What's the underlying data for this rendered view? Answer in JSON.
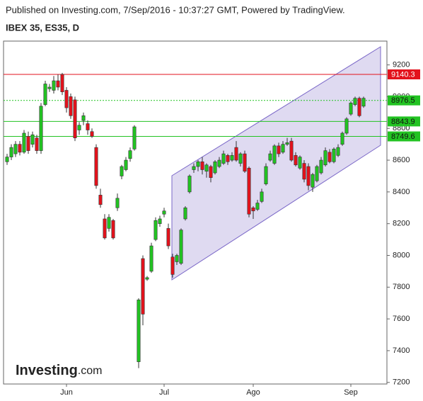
{
  "chart_data": {
    "type": "candlestick",
    "header": "Published on Investing.com, 7/Sep/2016 - 10:37:27 GMT, Powered by TradingView.",
    "title": "IBEX 35, ES35, D",
    "logo_main": "Investing",
    "logo_suffix": ".com",
    "up_color": "#22c322",
    "down_color": "#e3121c",
    "categories": [
      null,
      null,
      null,
      null,
      null,
      null,
      null,
      null,
      null,
      null,
      null,
      null,
      null,
      null,
      "Jun",
      null,
      null,
      null,
      null,
      null,
      null,
      null,
      null,
      null,
      null,
      null,
      null,
      null,
      null,
      null,
      null,
      null,
      null,
      null,
      null,
      null,
      null,
      "Jul",
      null,
      null,
      null,
      null,
      null,
      null,
      null,
      null,
      null,
      null,
      null,
      null,
      null,
      null,
      null,
      null,
      null,
      null,
      null,
      null,
      "Ago",
      null,
      null,
      null,
      null,
      null,
      null,
      null,
      null,
      null,
      null,
      null,
      null,
      null,
      null,
      null,
      null,
      null,
      null,
      null,
      null,
      null,
      null,
      "Sep",
      null,
      null,
      null
    ],
    "open": [
      8590,
      8620,
      8640,
      8700,
      8650,
      8750,
      8700,
      8740,
      8660,
      8950,
      9050,
      9040,
      9100,
      9140,
      9040,
      9000,
      8980,
      8790,
      8850,
      8830,
      8780,
      8680,
      8380,
      8230,
      8170,
      8220,
      8300,
      8500,
      8540,
      8610,
      8670,
      7330,
      7980,
      7850,
      7900,
      8100,
      8200,
      8260,
      8170,
      7990,
      7960,
      7950,
      8230,
      8400,
      8540,
      8560,
      8590,
      8530,
      8560,
      8520,
      8560,
      8580,
      8630,
      8600,
      8680,
      8580,
      8640,
      8550,
      8300,
      8290,
      8340,
      8450,
      8600,
      8580,
      8690,
      8650,
      8700,
      8720,
      8630,
      8550,
      8580,
      8560,
      8430,
      8470,
      8520,
      8570,
      8650,
      8590,
      8630,
      8700,
      8770,
      8890,
      8950,
      8990,
      8940
    ],
    "high": [
      8640,
      8700,
      8720,
      8720,
      8790,
      8780,
      8780,
      8760,
      8960,
      9100,
      9080,
      9130,
      9140,
      9150,
      9060,
      9020,
      9000,
      8840,
      8900,
      8850,
      8800,
      8700,
      8420,
      8260,
      8260,
      8230,
      8390,
      8570,
      8620,
      8680,
      8820,
      7730,
      8000,
      7870,
      8080,
      8240,
      8250,
      8300,
      8200,
      8010,
      8010,
      8170,
      8310,
      8510,
      8580,
      8600,
      8620,
      8580,
      8570,
      8600,
      8620,
      8660,
      8640,
      8650,
      8720,
      8650,
      8660,
      8560,
      8310,
      8350,
      8420,
      8580,
      8660,
      8700,
      8710,
      8720,
      8740,
      8740,
      8650,
      8630,
      8600,
      8580,
      8520,
      8570,
      8620,
      8680,
      8670,
      8680,
      8700,
      8780,
      8870,
      8970,
      9000,
      9000,
      9000
    ],
    "low": [
      8570,
      8600,
      8620,
      8630,
      8640,
      8640,
      8680,
      8640,
      8640,
      8940,
      9030,
      9020,
      9040,
      9010,
      8900,
      8860,
      8720,
      8760,
      8820,
      8760,
      8740,
      8420,
      8300,
      8100,
      8150,
      8100,
      8280,
      8480,
      8530,
      8590,
      8660,
      7290,
      7560,
      7840,
      7890,
      8090,
      8180,
      8240,
      8040,
      7860,
      7940,
      7940,
      8220,
      8390,
      8520,
      8530,
      8510,
      8490,
      8460,
      8510,
      8550,
      8570,
      8570,
      8590,
      8590,
      8560,
      8520,
      8240,
      8230,
      8280,
      8330,
      8440,
      8590,
      8570,
      8620,
      8640,
      8690,
      8590,
      8560,
      8540,
      8460,
      8410,
      8400,
      8460,
      8510,
      8560,
      8580,
      8580,
      8620,
      8690,
      8760,
      8880,
      8940,
      8870,
      8930
    ],
    "close": [
      8620,
      8680,
      8700,
      8650,
      8770,
      8660,
      8760,
      8660,
      8940,
      9080,
      9060,
      9100,
      9060,
      9030,
      8930,
      8880,
      8740,
      8820,
      8880,
      8790,
      8750,
      8440,
      8320,
      8110,
      8240,
      8110,
      8360,
      8560,
      8600,
      8660,
      8810,
      7720,
      7630,
      7860,
      8060,
      8220,
      8230,
      8280,
      8060,
      7880,
      8000,
      8160,
      8300,
      8500,
      8560,
      8590,
      8540,
      8570,
      8490,
      8590,
      8600,
      8640,
      8590,
      8630,
      8600,
      8640,
      8530,
      8260,
      8280,
      8330,
      8400,
      8560,
      8640,
      8690,
      8640,
      8700,
      8710,
      8600,
      8570,
      8620,
      8480,
      8440,
      8510,
      8560,
      8600,
      8660,
      8590,
      8670,
      8680,
      8770,
      8860,
      8960,
      8990,
      8880,
      8990
    ],
    "levels": [
      {
        "value": 9140.3,
        "color": "#e3121c",
        "dashed": false
      },
      {
        "value": 8976.5,
        "color": "#22c322",
        "dashed": true
      },
      {
        "value": 8843.9,
        "color": "#22c322",
        "dashed": false
      },
      {
        "value": 8749.6,
        "color": "#22c322",
        "dashed": false
      }
    ],
    "ylim": [
      7190,
      9350
    ],
    "yticks": [
      7200,
      7400,
      7600,
      7800,
      8000,
      8200,
      8400,
      8600,
      8800,
      9000,
      9200
    ],
    "grid": false
  }
}
